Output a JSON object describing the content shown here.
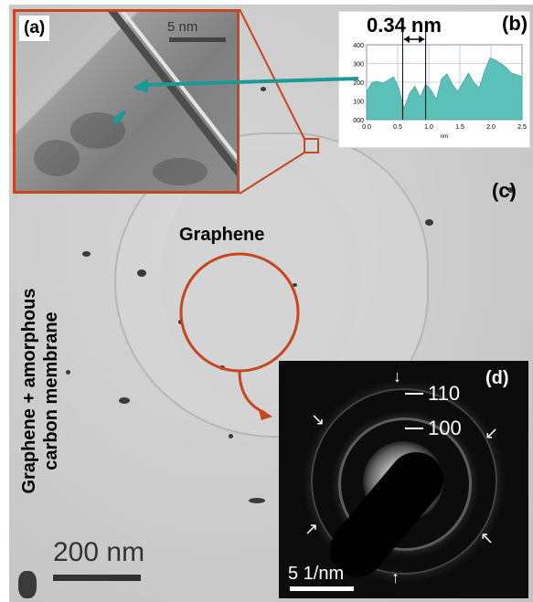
{
  "panels": {
    "a": {
      "label": "(a)",
      "scale_bar": "5 nm"
    },
    "b": {
      "label": "(b)",
      "measurement": "0.34 nm",
      "profile": {
        "x_unit": "nm",
        "x_ticks": [
          "0.0",
          "0.5",
          "1.0",
          "1.5",
          "2.0",
          "2.5"
        ],
        "y_ticks": [
          "400",
          "300",
          "200",
          "100",
          "000"
        ],
        "xlim": [
          0,
          2.5
        ],
        "ylim": [
          0,
          400
        ],
        "values": [
          150,
          200,
          205,
          195,
          210,
          230,
          170,
          60,
          140,
          180,
          120,
          190,
          160,
          110,
          220,
          245,
          190,
          150,
          200,
          250,
          200,
          170,
          260,
          330,
          320,
          300,
          280,
          250,
          240,
          230
        ]
      }
    },
    "c": {
      "label": "(c)",
      "region_label": "Graphene",
      "side_label_line1": "Graphene + amorphous",
      "side_label_line2": "carbon membrane",
      "scale_bar": "200 nm"
    },
    "d": {
      "label": "(d)",
      "index_outer": "110",
      "index_inner": "100",
      "scale_bar": "5 1/nm"
    }
  },
  "colors": {
    "highlight": "#c8461f",
    "pointer": "#1a9a96",
    "profile_fill": "#5bc0b8"
  }
}
